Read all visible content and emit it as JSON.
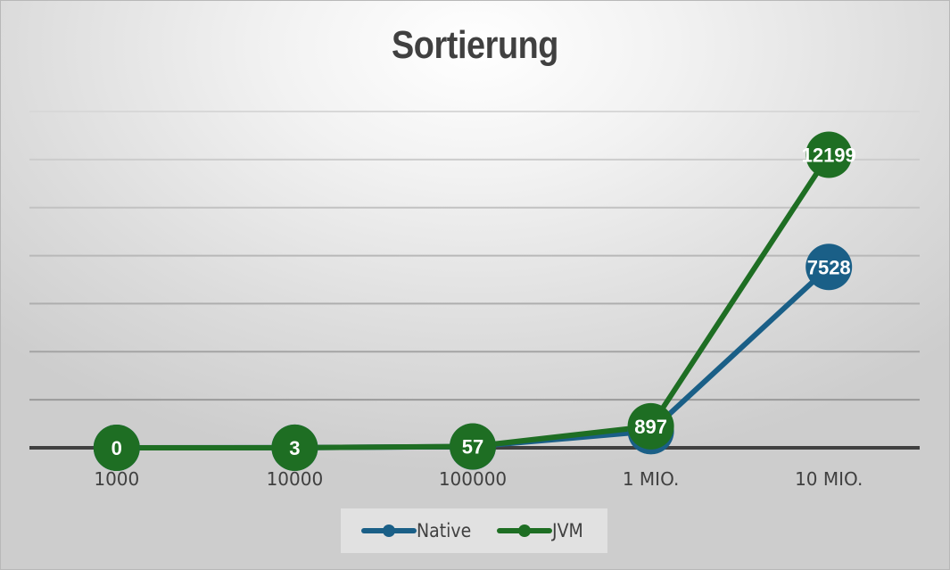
{
  "chart_data": {
    "type": "line",
    "title": "Sortierung",
    "xlabel": "",
    "ylabel": "",
    "categories": [
      "1000",
      "10000",
      "100000",
      "1 MIO.",
      "10 MIO."
    ],
    "series": [
      {
        "name": "Native",
        "color": "#1a5f87",
        "values": [
          0,
          5,
          51,
          691,
          7528
        ],
        "labels": [
          "0",
          "5",
          "51",
          "691",
          "7528"
        ]
      },
      {
        "name": "JVM",
        "color": "#1e6e23",
        "values": [
          0,
          3,
          57,
          897,
          12199
        ],
        "labels": [
          "0",
          "3",
          "57",
          "897",
          "12199"
        ]
      }
    ],
    "ylim": [
      0,
      14000
    ],
    "y_gridlines": [
      2000,
      4000,
      6000,
      8000,
      10000,
      12000,
      14000
    ],
    "y_tick_labels_visible": false,
    "grid": true,
    "legend_position": "bottom",
    "data_labels": true
  },
  "legend": {
    "items": [
      {
        "label": "Native",
        "color": "#1a5f87"
      },
      {
        "label": "JVM",
        "color": "#1e6e23"
      }
    ]
  }
}
